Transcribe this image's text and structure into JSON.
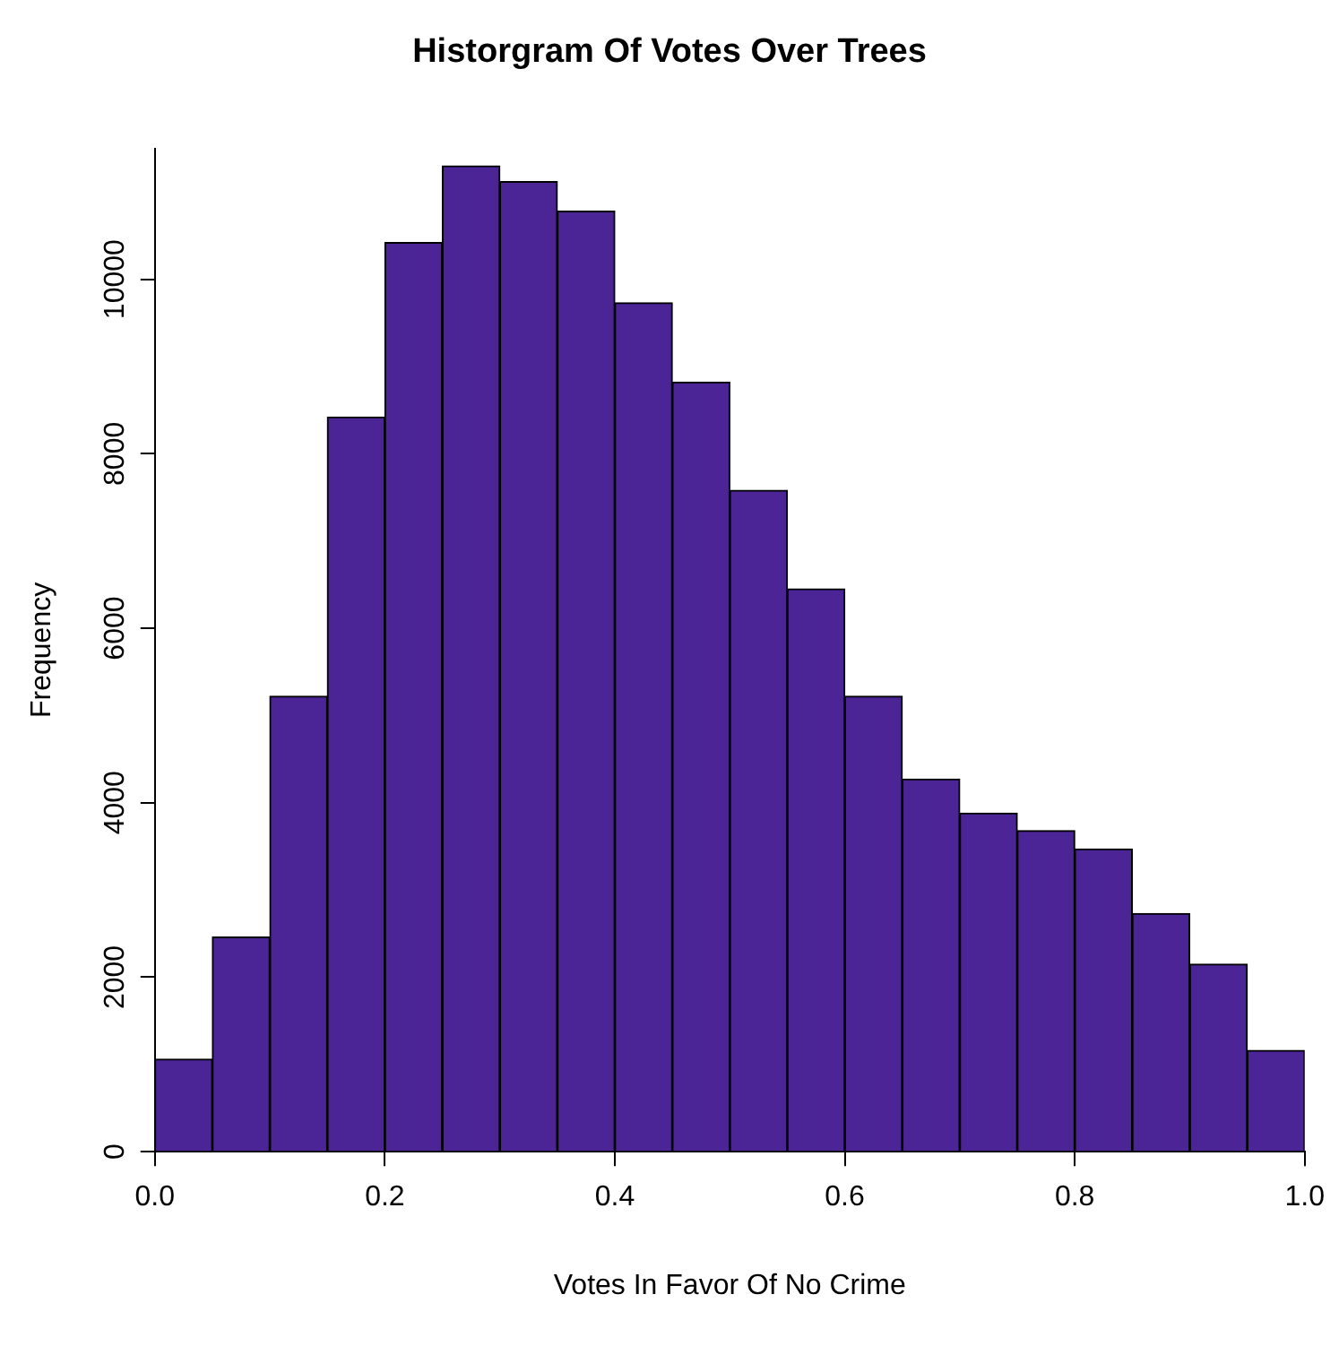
{
  "chart_data": {
    "type": "histogram",
    "title": "Historgram Of Votes Over Trees",
    "xlabel": "Votes In Favor Of No Crime",
    "ylabel": "Frequency",
    "bins": [
      0,
      0.05,
      0.1,
      0.15,
      0.2,
      0.25,
      0.3,
      0.35,
      0.4,
      0.45,
      0.5,
      0.55,
      0.6,
      0.65,
      0.7,
      0.75,
      0.8,
      0.85,
      0.9,
      0.95,
      1.0
    ],
    "values": [
      1060,
      2460,
      5220,
      8420,
      10420,
      11300,
      11120,
      10780,
      9730,
      8820,
      7580,
      6450,
      5220,
      4270,
      3880,
      3680,
      3470,
      2730,
      2150,
      1160
    ],
    "color": "#4b2596",
    "xlim": [
      0,
      1
    ],
    "xticks": [
      {
        "value": 0,
        "label": "0.0"
      },
      {
        "value": 0.2,
        "label": "0.2"
      },
      {
        "value": 0.4,
        "label": "0.4"
      },
      {
        "value": 0.6,
        "label": "0.6"
      },
      {
        "value": 0.8,
        "label": "0.8"
      },
      {
        "value": 1,
        "label": "1.0"
      }
    ],
    "ylim": [
      0,
      11500
    ],
    "yticks": [
      0,
      2000,
      4000,
      6000,
      8000,
      10000
    ],
    "grid": false,
    "legend": false
  }
}
